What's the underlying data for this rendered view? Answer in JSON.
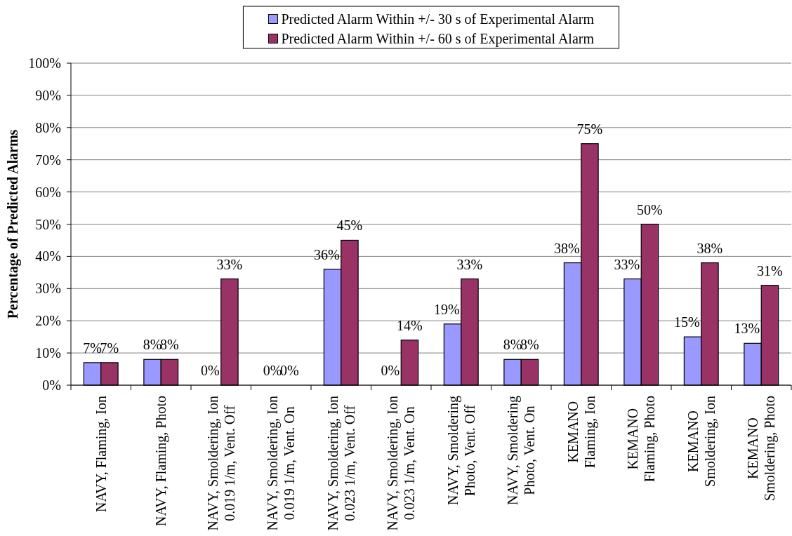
{
  "chart_data": {
    "type": "bar",
    "categories": [
      "NAVY, Flaming, Ion",
      "NAVY, Flaming, Photo",
      "NAVY, Smoldering, Ion\n0.019 1/m, Vent. Off",
      "NAVY, Smoldering, Ion\n0.019 1/m, Vent. On",
      "NAVY, Smoldering, Ion\n0.023 1/m, Vent. Off",
      "NAVY, Smoldering, Ion\n0.023 1/m, Vent. On",
      "NAVY, Smoldering\nPhoto, Vent. Off",
      "NAVY, Smoldering\nPhoto, Vent. On",
      "KEMANO\nFlaming, Ion",
      "KEMANO\nFlaming, Photo",
      "KEMANO\nSmoldering, Ion",
      "KEMANO\nSmoldering, Photo"
    ],
    "series": [
      {
        "name": "Predicted Alarm Within +/- 30 s of Experimental Alarm",
        "color": "#9999ff",
        "values": [
          7,
          8,
          0,
          0,
          36,
          0,
          19,
          8,
          38,
          33,
          15,
          13
        ],
        "value_labels": [
          "7%",
          "8%",
          "0%",
          "0%",
          "36%",
          "0%",
          "19%",
          "8%",
          "38%",
          "33%",
          "15%",
          "13%"
        ]
      },
      {
        "name": "Predicted Alarm Within +/- 60 s of Experimental Alarm",
        "color": "#993366",
        "values": [
          7,
          8,
          33,
          0,
          45,
          14,
          33,
          8,
          75,
          50,
          38,
          31
        ],
        "value_labels": [
          "7%",
          "8%",
          "33%",
          "0%",
          "45%",
          "14%",
          "33%",
          "8%",
          "75%",
          "50%",
          "38%",
          "31%"
        ]
      }
    ],
    "ylabel": "Percentage of Predicted Alarms",
    "ylim": [
      0,
      100
    ],
    "yticks": [
      {
        "value": 0,
        "label": "0%"
      },
      {
        "value": 10,
        "label": "10%"
      },
      {
        "value": 20,
        "label": "20%"
      },
      {
        "value": 30,
        "label": "30%"
      },
      {
        "value": 40,
        "label": "40%"
      },
      {
        "value": 50,
        "label": "50%"
      },
      {
        "value": 60,
        "label": "60%"
      },
      {
        "value": 70,
        "label": "70%"
      },
      {
        "value": 80,
        "label": "80%"
      },
      {
        "value": 90,
        "label": "90%"
      },
      {
        "value": 100,
        "label": "100%"
      }
    ],
    "grid": "y",
    "legend": "top"
  }
}
